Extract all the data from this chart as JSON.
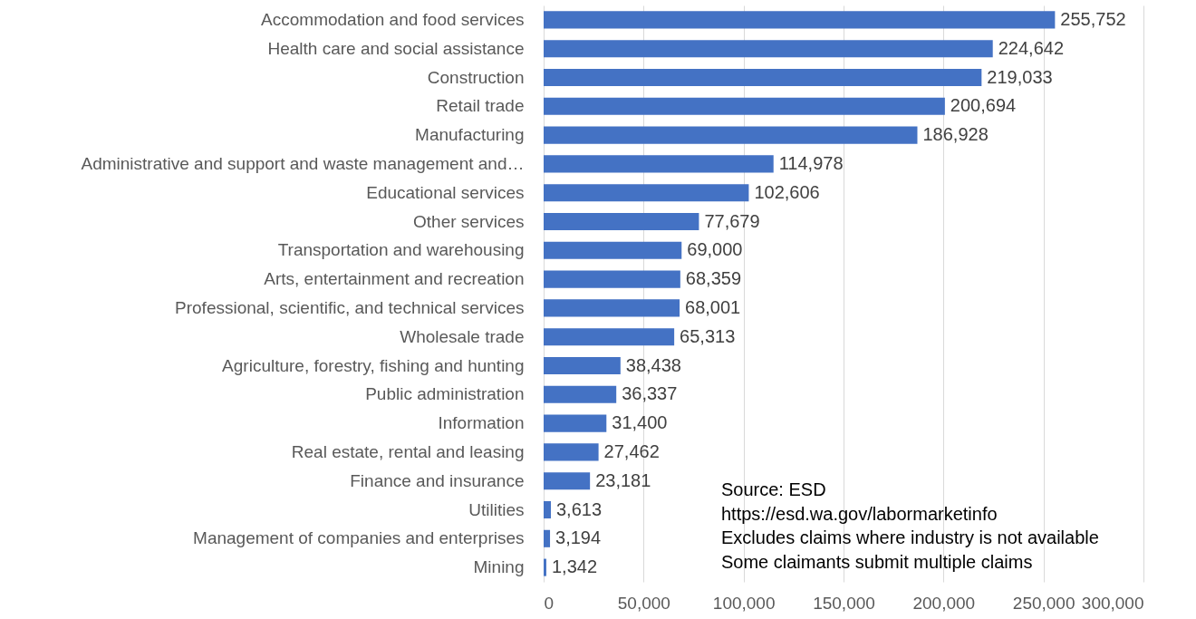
{
  "chart_data": {
    "type": "bar",
    "orientation": "horizontal",
    "categories": [
      "Accommodation and food services",
      "Health care and social assistance",
      "Construction",
      "Retail trade",
      "Manufacturing",
      "Administrative and support and waste management and…",
      "Educational services",
      "Other services",
      "Transportation and warehousing",
      "Arts, entertainment and recreation",
      "Professional, scientific, and technical services",
      "Wholesale trade",
      "Agriculture, forestry, fishing and hunting",
      "Public administration",
      "Information",
      "Real estate, rental and leasing",
      "Finance and insurance",
      "Utilities",
      "Management of companies and enterprises",
      "Mining"
    ],
    "values": [
      255752,
      224642,
      219033,
      200694,
      186928,
      114978,
      102606,
      77679,
      69000,
      68359,
      68001,
      65313,
      38438,
      36337,
      31400,
      27462,
      23181,
      3613,
      3194,
      1342
    ],
    "color": "#4472c4",
    "xlim": [
      0,
      300000
    ],
    "xticks": [
      0,
      {
        "value": 50000,
        "label": "50,000"
      },
      {
        "value": 100000,
        "label": "100,000"
      },
      {
        "value": 150000,
        "label": "150,000"
      },
      {
        "value": 200000,
        "label": "200,000"
      },
      {
        "value": 250000,
        "label": "250,000"
      },
      {
        "value": 300000,
        "label": "300,000"
      }
    ],
    "grid": "x",
    "value_labels": [
      "255,752",
      "224,642",
      "219,033",
      "200,694",
      "186,928",
      "114,978",
      "102,606",
      "77,679",
      "69,000",
      "68,359",
      "68,001",
      "65,313",
      "38,438",
      "36,337",
      "31,400",
      "27,462",
      "23,181",
      "3,613",
      "3,194",
      "1,342"
    ],
    "annotations": [
      "Source: ESD",
      "https://esd.wa.gov/labormarketinfo",
      "Excludes claims where industry is not available",
      "Some claimants submit multiple claims"
    ]
  }
}
